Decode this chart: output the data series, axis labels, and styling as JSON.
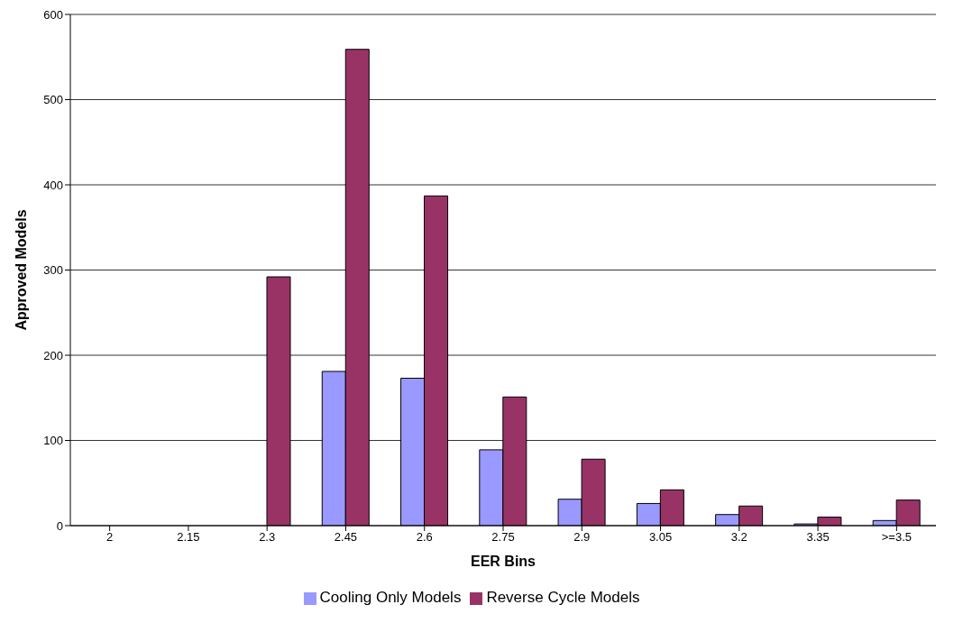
{
  "chart_data": {
    "type": "bar",
    "xlabel": "EER Bins",
    "ylabel": "Approved Models",
    "categories": [
      "2",
      "2.15",
      "2.3",
      "2.45",
      "2.6",
      "2.75",
      "2.9",
      "3.05",
      "3.2",
      "3.35",
      ">=3.5"
    ],
    "series": [
      {
        "name": "Cooling Only Models",
        "color": "#9999ff",
        "values": [
          0,
          0,
          0,
          181,
          173,
          89,
          31,
          26,
          13,
          2,
          6
        ]
      },
      {
        "name": "Reverse Cycle Models",
        "color": "#993366",
        "values": [
          0,
          0,
          292,
          559,
          387,
          151,
          78,
          42,
          23,
          10,
          30
        ]
      }
    ],
    "ylim": [
      0,
      600
    ],
    "yticks": [
      0,
      100,
      200,
      300,
      400,
      500,
      600
    ],
    "grid": "y",
    "legend": "bottom"
  }
}
